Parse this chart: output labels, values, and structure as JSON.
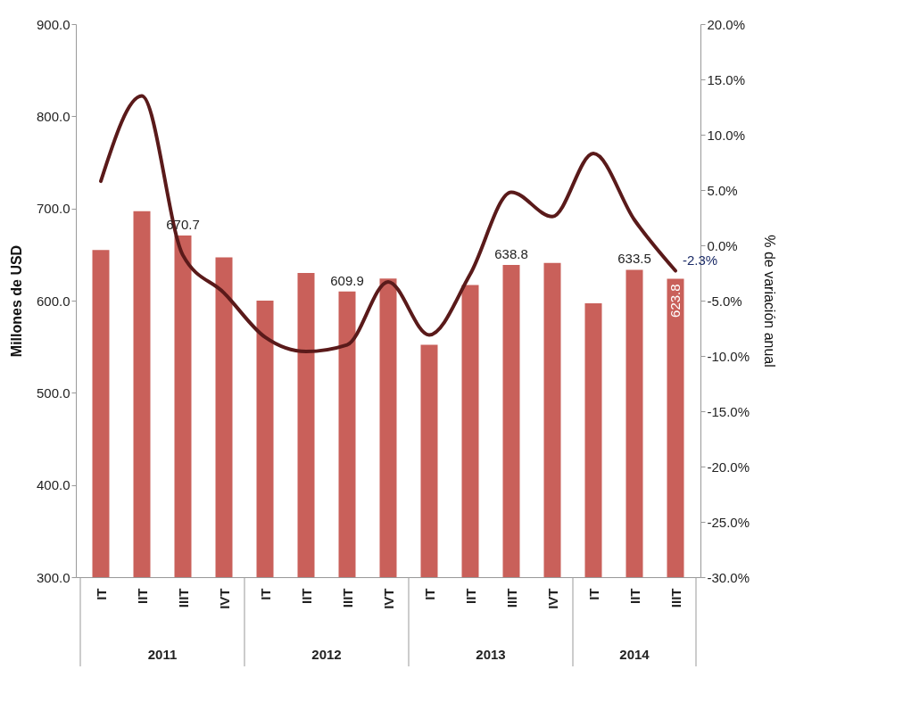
{
  "chart_data": {
    "type": "bar",
    "ylabel": "Millones de USD",
    "y2label": "% de variación anual",
    "categories": [
      "IT",
      "IIT",
      "IIIT",
      "IVT",
      "IT",
      "IIT",
      "IIIT",
      "IVT",
      "IT",
      "IIT",
      "IIIT",
      "IVT",
      "IT",
      "IIT",
      "IIIT"
    ],
    "annotations": [
      "2011",
      "2012",
      "2013",
      "2014"
    ],
    "series": [
      {
        "color": "#c9605a",
        "values": [
          655,
          697,
          670.7,
          647,
          600,
          630,
          609.9,
          624,
          552,
          617,
          638.8,
          641,
          597,
          633.5,
          623.8
        ],
        "value_labels": [
          null,
          null,
          "670.7",
          null,
          null,
          null,
          "609.9",
          null,
          null,
          null,
          "638.8",
          null,
          null,
          "633.5",
          "623.8"
        ]
      },
      {
        "type": "line",
        "axis": "y2",
        "color": "#5a1a1a",
        "values": [
          5.8,
          13.5,
          -0.9,
          -4.3,
          -8.3,
          -9.6,
          -9.0,
          -3.3,
          -8.1,
          -2.6,
          4.8,
          2.6,
          8.3,
          2.3,
          -2.3
        ],
        "value_labels": [
          null,
          null,
          null,
          null,
          null,
          null,
          null,
          null,
          null,
          null,
          null,
          null,
          null,
          null,
          "-2.3%"
        ]
      }
    ],
    "ylim": [
      300,
      900
    ],
    "yticks": [
      {
        "value": 300,
        "label": "300.0"
      },
      {
        "value": 400,
        "label": "400.0"
      },
      {
        "value": 500,
        "label": "500.0"
      },
      {
        "value": 600,
        "label": "600.0"
      },
      {
        "value": 700,
        "label": "700.0"
      },
      {
        "value": 800,
        "label": "800.0"
      },
      {
        "value": 900,
        "label": "900.0"
      }
    ],
    "y2lim": [
      -30,
      20
    ],
    "y2ticks": [
      {
        "value": -30,
        "label": "-30.0%"
      },
      {
        "value": -25,
        "label": "-25.0%"
      },
      {
        "value": -20,
        "label": "-20.0%"
      },
      {
        "value": -15,
        "label": "-15.0%"
      },
      {
        "value": -10,
        "label": "-10.0%"
      },
      {
        "value": -5,
        "label": "-5.0%"
      },
      {
        "value": 0,
        "label": "0.0%"
      },
      {
        "value": 5,
        "label": "5.0%"
      },
      {
        "value": 10,
        "label": "10.0%"
      },
      {
        "value": 15,
        "label": "15.0%"
      },
      {
        "value": 20,
        "label": "20.0%"
      }
    ],
    "grid": false,
    "line_style": "solid",
    "marker": "none"
  }
}
